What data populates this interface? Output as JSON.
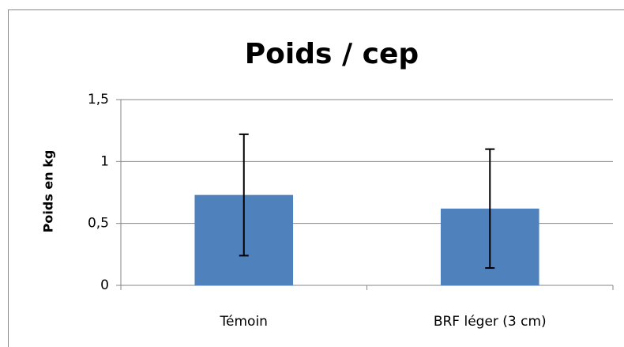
{
  "chart_data": {
    "type": "bar",
    "title": "Poids / cep",
    "y_label": "Poids en kg",
    "categories": [
      "Témoin",
      "BRF léger (3 cm)"
    ],
    "values": [
      0.73,
      0.62
    ],
    "errors": [
      0.49,
      0.48
    ],
    "color": "#4f81bd",
    "ylim": [
      0,
      1.5
    ],
    "yticks": [
      0,
      {
        "value": 0.5,
        "label": "0,5"
      },
      1,
      {
        "value": 1.5,
        "label": "1,5"
      }
    ],
    "grid": true
  }
}
